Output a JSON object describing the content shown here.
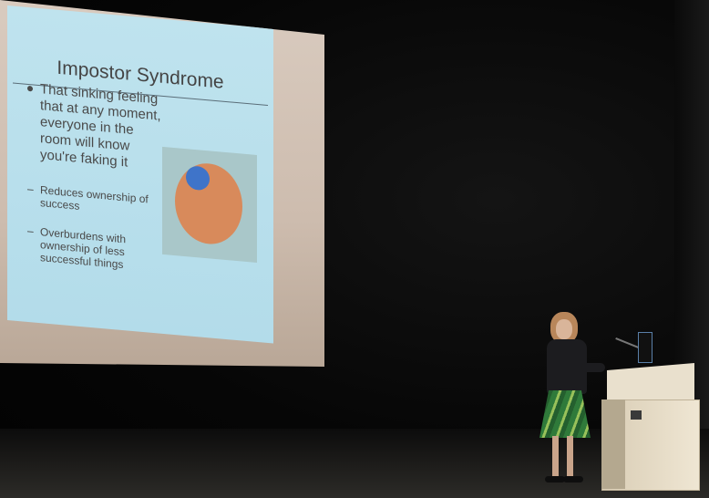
{
  "slide": {
    "title": "Impostor Syndrome",
    "main_point": "That sinking feeling that at any moment, everyone in the room will know you're faking it",
    "sub_points": [
      "Reduces ownership of success",
      "Overburdens with ownership of less successful things"
    ],
    "sub_bullet_glyph": "–",
    "bullet_glyph": "•"
  },
  "colors": {
    "slide_background": "#b3dcea",
    "venn_large_circle": "#d88a5b",
    "venn_small_circle": "#3f74c9",
    "skirt_green": "#2f7a3a"
  },
  "icons": {
    "venn_diagram": "venn-diagram-icon",
    "microphone": "microphone-icon"
  }
}
